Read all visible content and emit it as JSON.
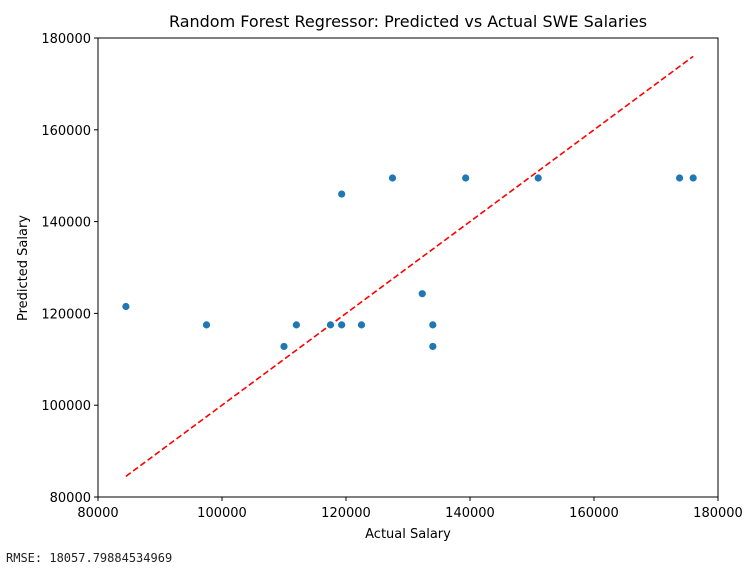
{
  "chart_data": {
    "type": "scatter",
    "title": "Random Forest Regressor: Predicted vs Actual SWE Salaries",
    "xlabel": "Actual Salary",
    "ylabel": "Predicted Salary",
    "xlim": [
      80000,
      180000
    ],
    "ylim": [
      80000,
      180000
    ],
    "xticks": [
      80000,
      100000,
      120000,
      140000,
      160000,
      180000
    ],
    "yticks": [
      80000,
      100000,
      120000,
      140000,
      160000,
      180000
    ],
    "xtick_labels": [
      "80000",
      "100000",
      "120000",
      "140000",
      "160000",
      "180000"
    ],
    "ytick_labels": [
      "80000",
      "100000",
      "120000",
      "140000",
      "160000",
      "180000"
    ],
    "grid": false,
    "series": [
      {
        "type": "scatter",
        "color": "#1f77b4",
        "points": [
          {
            "x": 84500,
            "y": 121500
          },
          {
            "x": 97500,
            "y": 117500
          },
          {
            "x": 110000,
            "y": 112800
          },
          {
            "x": 112000,
            "y": 117500
          },
          {
            "x": 117500,
            "y": 117500
          },
          {
            "x": 119300,
            "y": 117500
          },
          {
            "x": 119300,
            "y": 146000
          },
          {
            "x": 122500,
            "y": 117500
          },
          {
            "x": 127500,
            "y": 149500
          },
          {
            "x": 132300,
            "y": 124300
          },
          {
            "x": 134000,
            "y": 117500
          },
          {
            "x": 134000,
            "y": 112800
          },
          {
            "x": 139300,
            "y": 149500
          },
          {
            "x": 151000,
            "y": 149500
          },
          {
            "x": 173800,
            "y": 149500
          },
          {
            "x": 176000,
            "y": 149500
          }
        ]
      },
      {
        "type": "line",
        "style": "dashed",
        "color": "#ff0000",
        "points": [
          {
            "x": 84500,
            "y": 84500
          },
          {
            "x": 176000,
            "y": 176000
          }
        ]
      }
    ]
  },
  "footer": {
    "rmse_label": "RMSE:",
    "rmse_value": "18057.79884534969"
  }
}
